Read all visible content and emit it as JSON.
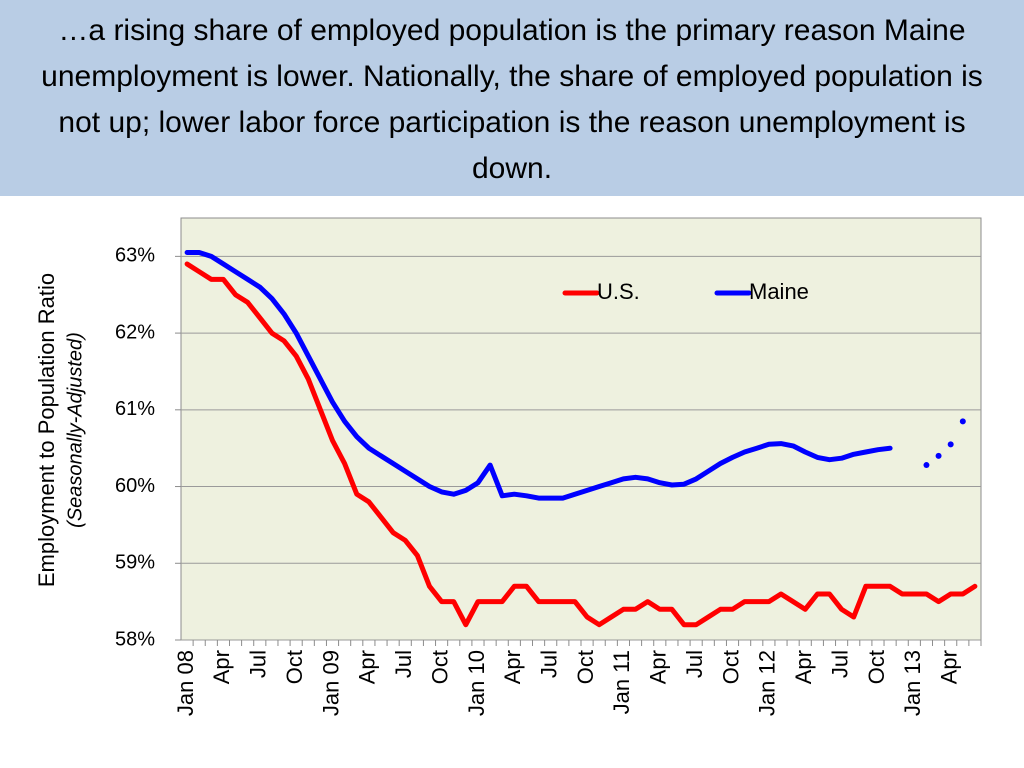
{
  "chart_data": {
    "type": "line",
    "title": "…a rising share of employed population is the primary reason Maine unemployment is lower. Nationally, the share of employed population is not up; lower labor force participation is the reason unemployment is down.",
    "y_label": "Employment to Population Ratio",
    "y_sublabel": "(Seasonally-Adjusted)",
    "categories": [
      "Jan 08",
      null,
      null,
      "Apr",
      null,
      null,
      "Jul",
      null,
      null,
      "Oct",
      null,
      null,
      "Jan 09",
      null,
      null,
      "Apr",
      null,
      null,
      "Jul",
      null,
      null,
      "Oct",
      null,
      null,
      "Jan 10",
      null,
      null,
      "Apr",
      null,
      null,
      "Jul",
      null,
      null,
      "Oct",
      null,
      null,
      "Jan 11",
      null,
      null,
      "Apr",
      null,
      null,
      "Jul",
      null,
      null,
      "Oct",
      null,
      null,
      "Jan 12",
      null,
      null,
      "Apr",
      null,
      null,
      "Jul",
      null,
      null,
      "Oct",
      null,
      null,
      "Jan 13",
      null,
      null,
      "Apr",
      null,
      null
    ],
    "series": [
      {
        "name": "U.S.",
        "color": "#ff0000",
        "values": [
          62.9,
          62.8,
          62.7,
          62.7,
          62.5,
          62.4,
          62.2,
          62.0,
          61.9,
          61.7,
          61.4,
          61.0,
          60.6,
          60.3,
          59.9,
          59.8,
          59.6,
          59.4,
          59.3,
          59.1,
          58.7,
          58.5,
          58.5,
          58.2,
          58.5,
          58.5,
          58.5,
          58.7,
          58.7,
          58.5,
          58.5,
          58.5,
          58.5,
          58.3,
          58.2,
          58.3,
          58.4,
          58.4,
          58.5,
          58.4,
          58.4,
          58.2,
          58.2,
          58.3,
          58.4,
          58.4,
          58.5,
          58.5,
          58.5,
          58.6,
          58.5,
          58.4,
          58.6,
          58.6,
          58.4,
          58.3,
          58.7,
          58.7,
          58.7,
          58.6,
          58.6,
          58.6,
          58.5,
          58.6,
          58.6,
          58.7
        ]
      },
      {
        "name": "Maine",
        "color": "#0000ff",
        "dotted_after_gap": true,
        "values": [
          63.05,
          63.05,
          63.0,
          62.9,
          62.8,
          62.7,
          62.6,
          62.45,
          62.25,
          62.0,
          61.7,
          61.4,
          61.1,
          60.85,
          60.65,
          60.5,
          60.4,
          60.3,
          60.2,
          60.1,
          60.0,
          59.93,
          59.9,
          59.95,
          60.05,
          60.28,
          59.88,
          59.9,
          59.88,
          59.85,
          59.85,
          59.85,
          59.9,
          59.95,
          60.0,
          60.05,
          60.1,
          60.12,
          60.1,
          60.05,
          60.02,
          60.03,
          60.1,
          60.2,
          60.3,
          60.38,
          60.45,
          60.5,
          60.55,
          60.56,
          60.53,
          60.45,
          60.38,
          60.35,
          60.37,
          60.42,
          60.45,
          60.48,
          60.5,
          null,
          null,
          60.28,
          60.4,
          60.55,
          60.85,
          null
        ]
      }
    ],
    "ylim": [
      58,
      63.5
    ],
    "yticks": [
      {
        "value": 58,
        "label": "58%"
      },
      {
        "value": 59,
        "label": "59%"
      },
      {
        "value": 60,
        "label": "60%"
      },
      {
        "value": 61,
        "label": "61%"
      },
      {
        "value": 62,
        "label": "62%"
      },
      {
        "value": 63,
        "label": "63%"
      }
    ],
    "grid": true,
    "legend": "upper center"
  }
}
